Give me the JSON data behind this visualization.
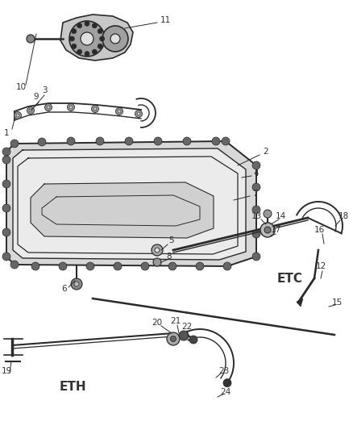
{
  "bg_color": "#ffffff",
  "line_color": "#2a2a2a",
  "label_color": "#333333",
  "figsize": [
    4.38,
    5.33
  ],
  "dpi": 100,
  "label_fontsize": 7.5,
  "etc_fontsize": 11,
  "eth_fontsize": 11
}
